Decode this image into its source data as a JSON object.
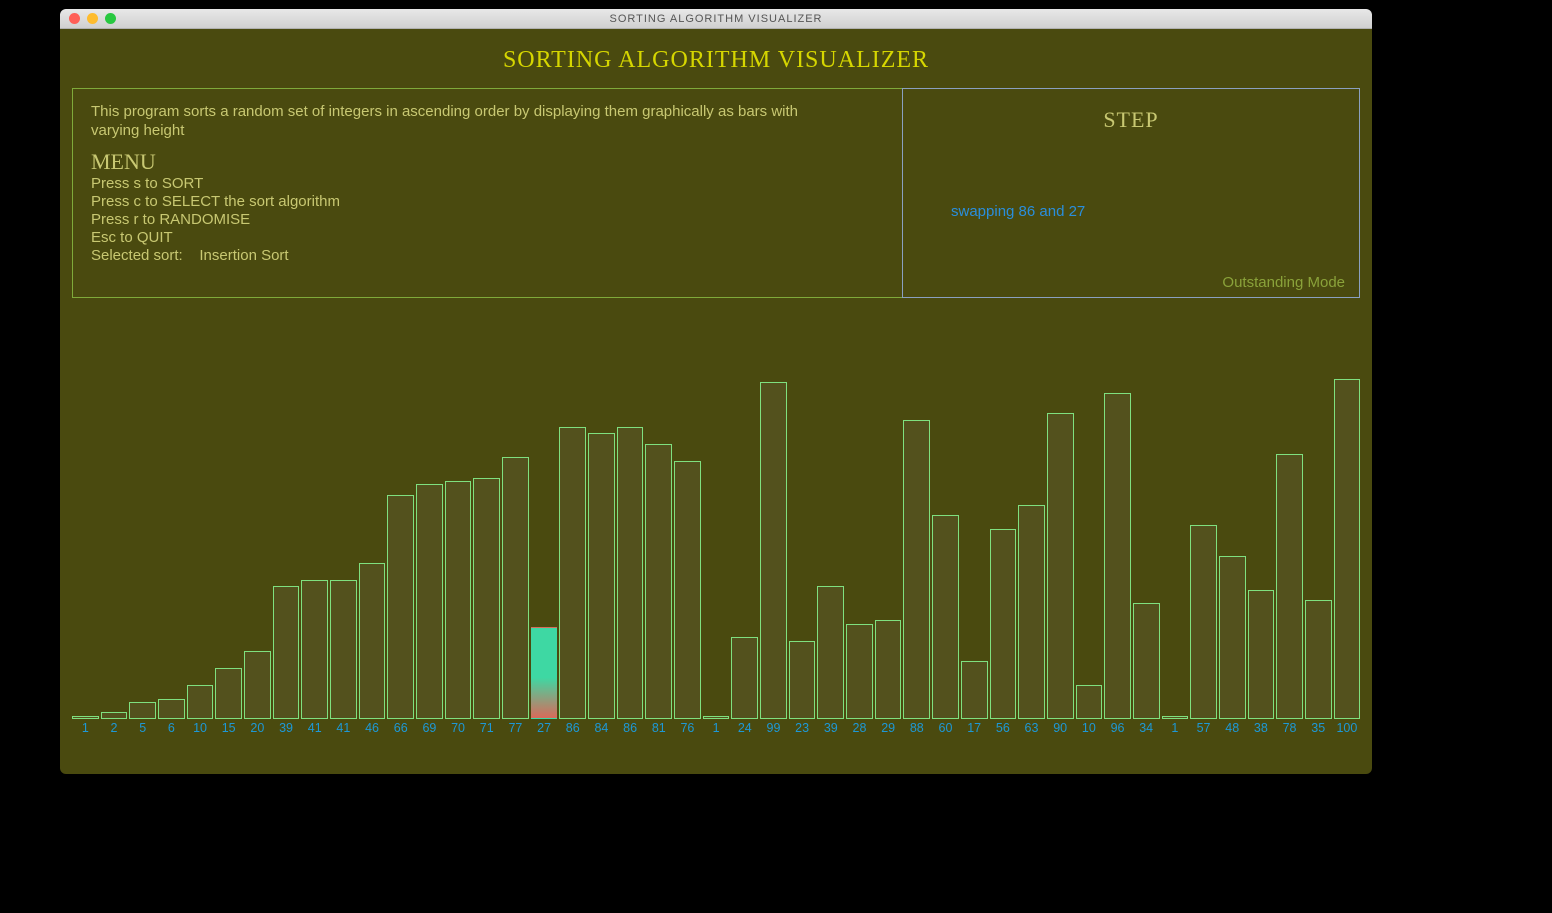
{
  "window": {
    "title": "SORTING ALGORITHM VISUALIZER"
  },
  "app": {
    "title": "SORTING ALGORITHM VISUALIZER",
    "intro": "This program sorts a random set of integers in ascending order by displaying them graphically as bars with varying height",
    "menu_title": "MENU",
    "menu_lines": {
      "sort": "Press s to SORT",
      "select": "Press c to SELECT the sort algorithm",
      "randomise": "Press r to RANDOMISE",
      "quit": "Esc to QUIT"
    },
    "selected_sort_label": "Selected sort:",
    "selected_sort_value": "Insertion Sort",
    "step_title": "STEP",
    "step_message": "swapping 86 and 27",
    "mode_label": "Outstanding Mode"
  },
  "chart": {
    "type": "bar",
    "value_scale_max": 100,
    "bar_stroke": "#7fe07f",
    "bar_fill": "rgba(240,200,255,0.06)",
    "highlight_gradient_top": "#3ed8a3",
    "highlight_gradient_bottom": "#d96a5a",
    "axis_label_color": "#1d98d6",
    "background_color": "#4a4a0f",
    "bars": [
      {
        "value": 1,
        "label": "1",
        "highlight": false
      },
      {
        "value": 2,
        "label": "2",
        "highlight": false
      },
      {
        "value": 5,
        "label": "5",
        "highlight": false
      },
      {
        "value": 6,
        "label": "6",
        "highlight": false
      },
      {
        "value": 10,
        "label": "10",
        "highlight": false
      },
      {
        "value": 15,
        "label": "15",
        "highlight": false
      },
      {
        "value": 20,
        "label": "20",
        "highlight": false
      },
      {
        "value": 39,
        "label": "39",
        "highlight": false
      },
      {
        "value": 41,
        "label": "41",
        "highlight": false
      },
      {
        "value": 41,
        "label": "41",
        "highlight": false
      },
      {
        "value": 46,
        "label": "46",
        "highlight": false
      },
      {
        "value": 66,
        "label": "66",
        "highlight": false
      },
      {
        "value": 69,
        "label": "69",
        "highlight": false
      },
      {
        "value": 70,
        "label": "70",
        "highlight": false
      },
      {
        "value": 71,
        "label": "71",
        "highlight": false
      },
      {
        "value": 77,
        "label": "77",
        "highlight": false
      },
      {
        "value": 27,
        "label": "27",
        "highlight": true
      },
      {
        "value": 86,
        "label": "86",
        "highlight": false
      },
      {
        "value": 84,
        "label": "84",
        "highlight": false
      },
      {
        "value": 86,
        "label": "86",
        "highlight": false
      },
      {
        "value": 81,
        "label": "81",
        "highlight": false
      },
      {
        "value": 76,
        "label": "76",
        "highlight": false
      },
      {
        "value": 1,
        "label": "1",
        "highlight": false
      },
      {
        "value": 24,
        "label": "24",
        "highlight": false
      },
      {
        "value": 99,
        "label": "99",
        "highlight": false
      },
      {
        "value": 23,
        "label": "23",
        "highlight": false
      },
      {
        "value": 39,
        "label": "39",
        "highlight": false
      },
      {
        "value": 28,
        "label": "28",
        "highlight": false
      },
      {
        "value": 29,
        "label": "29",
        "highlight": false
      },
      {
        "value": 88,
        "label": "88",
        "highlight": false
      },
      {
        "value": 60,
        "label": "60",
        "highlight": false
      },
      {
        "value": 17,
        "label": "17",
        "highlight": false
      },
      {
        "value": 56,
        "label": "56",
        "highlight": false
      },
      {
        "value": 63,
        "label": "63",
        "highlight": false
      },
      {
        "value": 90,
        "label": "90",
        "highlight": false
      },
      {
        "value": 10,
        "label": "10",
        "highlight": false
      },
      {
        "value": 96,
        "label": "96",
        "highlight": false
      },
      {
        "value": 34,
        "label": "34",
        "highlight": false
      },
      {
        "value": 1,
        "label": "1",
        "highlight": false
      },
      {
        "value": 57,
        "label": "57",
        "highlight": false
      },
      {
        "value": 48,
        "label": "48",
        "highlight": false
      },
      {
        "value": 38,
        "label": "38",
        "highlight": false
      },
      {
        "value": 78,
        "label": "78",
        "highlight": false
      },
      {
        "value": 35,
        "label": "35",
        "highlight": false
      },
      {
        "value": 100,
        "label": "100",
        "highlight": false
      }
    ]
  },
  "colors": {
    "background_black": "#000000",
    "olive_app_bg": "#4a4a0f",
    "lime_text": "#c8c872",
    "yellow_title": "#d6d600",
    "panel_border": "#7faa3a",
    "step_text": "#2a8edc",
    "mode_text": "#8aa23a"
  }
}
